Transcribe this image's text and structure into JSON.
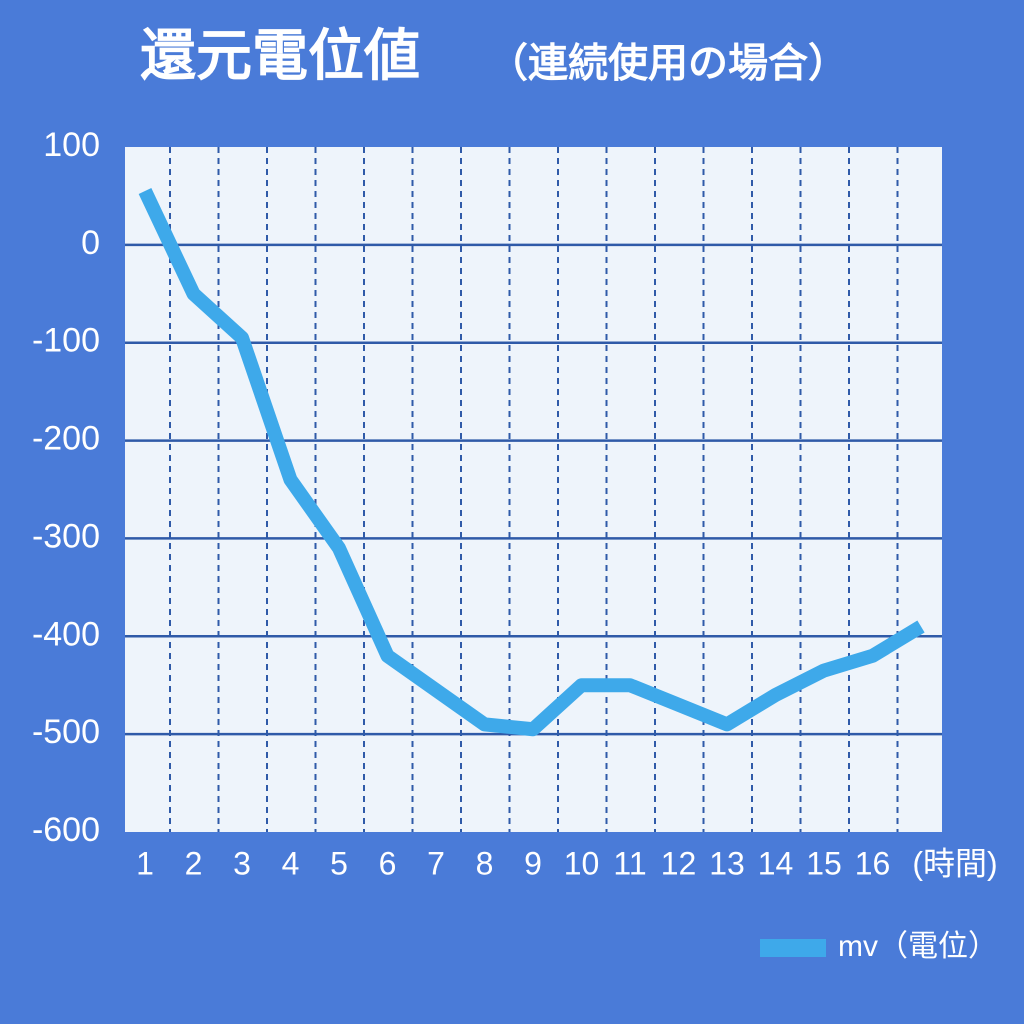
{
  "chart_data": {
    "type": "line",
    "title": "還元電位値",
    "subtitle": "（連続使用の場合）",
    "x_label": "(時間)",
    "categories": [
      "1",
      "2",
      "3",
      "4",
      "5",
      "6",
      "7",
      "8",
      "9",
      "10",
      "11",
      "12",
      "13",
      "14",
      "15",
      "16",
      null
    ],
    "series": [
      {
        "name": "mv（電位）",
        "color": "#3ea9ea",
        "values": [
          55,
          -50,
          -95,
          -240,
          -310,
          -420,
          -455,
          -490,
          -495,
          -450,
          -450,
          -470,
          -490,
          -460,
          -435,
          -420,
          -390
        ]
      }
    ],
    "ylim": [
      -600,
      100
    ],
    "yticks": [
      100,
      0,
      -100,
      -200,
      -300,
      -400,
      -500,
      -600
    ],
    "grid": true,
    "legend": "bottom-right"
  }
}
